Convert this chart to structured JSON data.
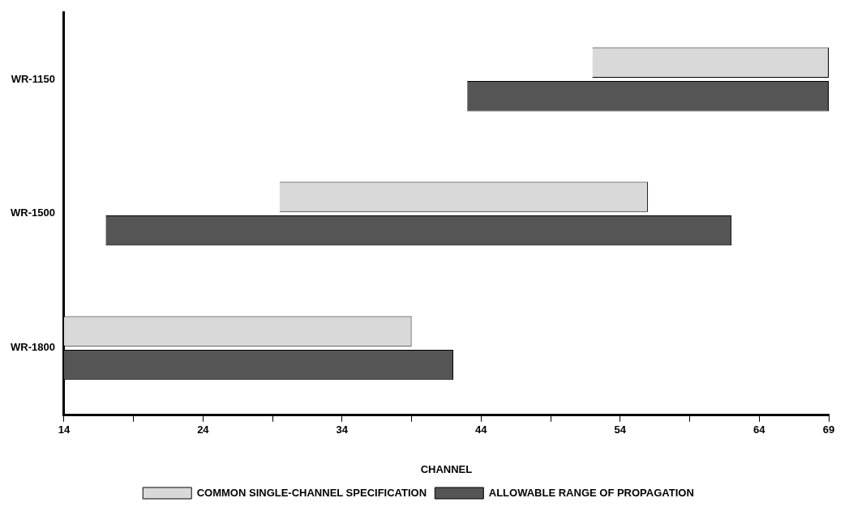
{
  "chart_data": {
    "type": "bar",
    "orientation": "horizontal",
    "categories": [
      "WR-1150",
      "WR-1500",
      "WR-1800"
    ],
    "xlabel": "CHANNEL",
    "xlim": [
      14,
      69
    ],
    "xticks": [
      14,
      {
        "value": 19,
        "label": null
      },
      24,
      {
        "value": 29,
        "label": null
      },
      34,
      {
        "value": 39,
        "label": null
      },
      44,
      {
        "value": 49,
        "label": null
      },
      54,
      {
        "value": 59,
        "label": null
      },
      64,
      69
    ],
    "series": [
      {
        "name": "COMMON SINGLE-CHANNEL SPECIFICATION",
        "color": "#d9d9d9",
        "base": [
          52,
          29.5,
          14
        ],
        "values": [
          17,
          26.5,
          25
        ]
      },
      {
        "name": "ALLOWABLE RANGE OF PROPAGATION",
        "color": "#555555",
        "base": [
          43,
          17,
          14
        ],
        "values": [
          26,
          45,
          28
        ]
      }
    ],
    "legend": "bottom"
  }
}
